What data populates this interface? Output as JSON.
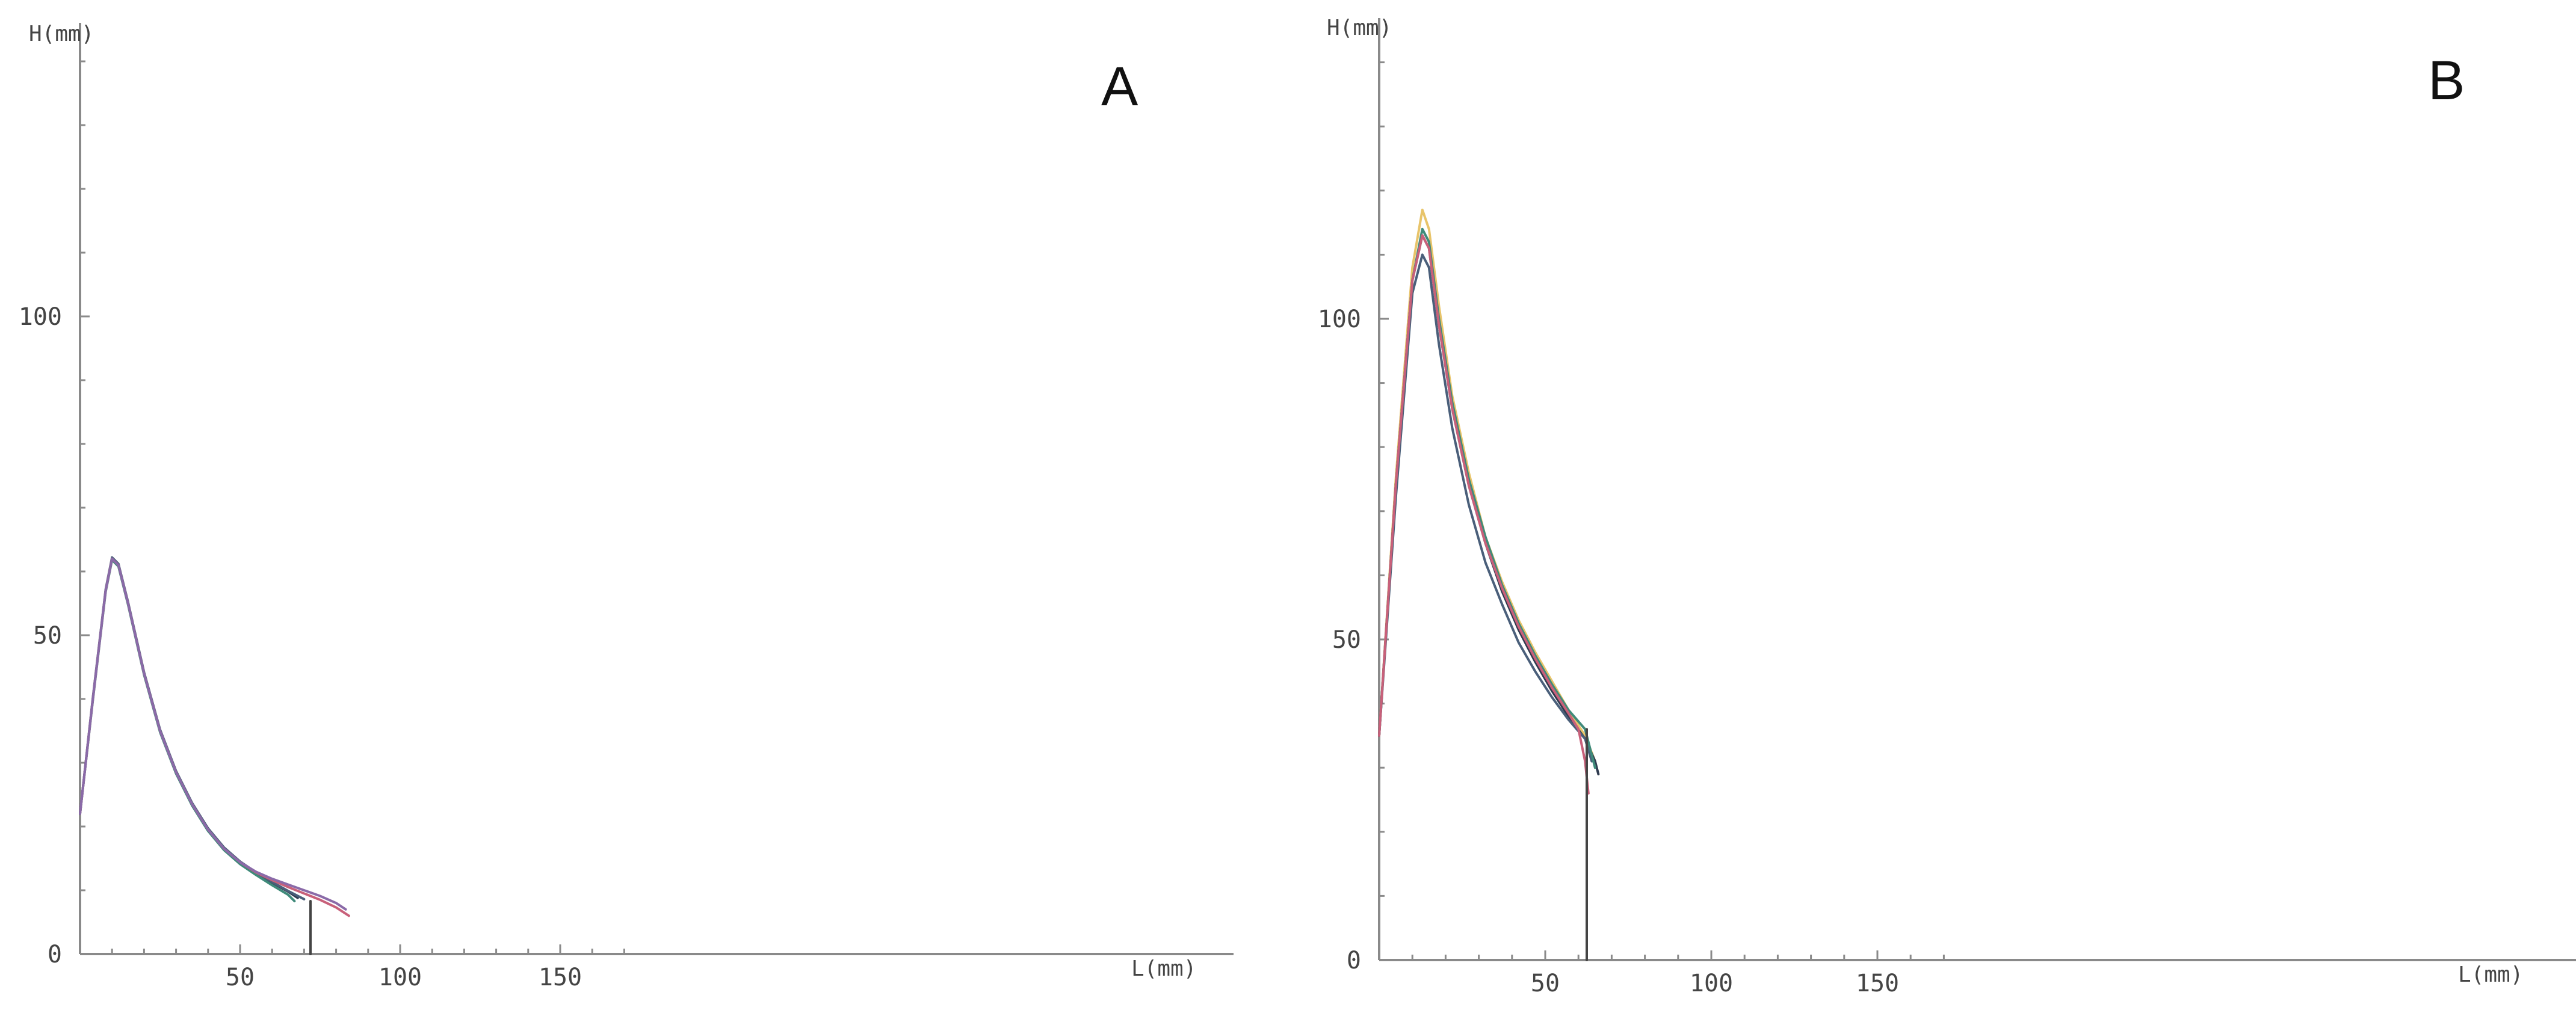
{
  "chart_data": [
    {
      "type": "line",
      "panel_label": "A",
      "xlabel": "L(mm)",
      "ylabel": "H(mm)",
      "xlim": [
        0,
        180
      ],
      "ylim": [
        0,
        140
      ],
      "x_ticks": [
        50,
        100,
        150
      ],
      "y_ticks": [
        0,
        50,
        100
      ],
      "grid": false,
      "series": [
        {
          "color": "#2f3b4f",
          "x": [
            0,
            4,
            8,
            10,
            12,
            15,
            20,
            25,
            30,
            35,
            40,
            45,
            50,
            55,
            60,
            65,
            68
          ],
          "y": [
            22,
            40,
            57,
            62,
            61,
            55,
            44,
            35,
            28.5,
            23.5,
            19.5,
            16.5,
            14.3,
            12.6,
            11.2,
            9.8,
            8.8
          ]
        },
        {
          "color": "#4a5f7a",
          "x": [
            0,
            4,
            8,
            10,
            12,
            15,
            20,
            25,
            30,
            35,
            40,
            45,
            50,
            55,
            60,
            65,
            70
          ],
          "y": [
            22,
            40.2,
            57.2,
            62.2,
            61.2,
            55.2,
            44.2,
            35.2,
            28.7,
            23.7,
            19.7,
            16.7,
            14.5,
            12.8,
            11.3,
            9.9,
            8.6
          ]
        },
        {
          "color": "#3f8a7a",
          "x": [
            0,
            4,
            8,
            10,
            12,
            15,
            20,
            25,
            30,
            35,
            40,
            45,
            50,
            55,
            60,
            65,
            67
          ],
          "y": [
            22,
            39.8,
            56.8,
            61.8,
            60.8,
            54.8,
            43.8,
            34.8,
            28.3,
            23.3,
            19.3,
            16.3,
            14.1,
            12.4,
            10.8,
            9.3,
            8.3
          ]
        },
        {
          "color": "#c8607a",
          "x": [
            0,
            4,
            8,
            10,
            12,
            15,
            20,
            25,
            30,
            35,
            40,
            45,
            50,
            55,
            60,
            65,
            70,
            75,
            80,
            84
          ],
          "y": [
            22,
            40,
            57,
            62,
            61,
            55,
            44,
            35,
            28.5,
            23.5,
            19.5,
            16.5,
            14.4,
            12.8,
            11.6,
            10.5,
            9.5,
            8.5,
            7.3,
            6
          ]
        },
        {
          "color": "#8a6aa8",
          "x": [
            0,
            4,
            8,
            10,
            12,
            15,
            20,
            25,
            30,
            35,
            40,
            45,
            50,
            55,
            60,
            65,
            70,
            75,
            80,
            83
          ],
          "y": [
            22,
            40,
            57,
            62,
            61,
            55,
            44,
            35,
            28.5,
            23.5,
            19.5,
            16.5,
            14.4,
            12.9,
            11.8,
            10.9,
            10,
            9.1,
            8,
            7
          ]
        },
        {
          "color": "#444444",
          "x": [
            72,
            72
          ],
          "y": [
            8.3,
            0
          ]
        }
      ]
    },
    {
      "type": "line",
      "panel_label": "B",
      "xlabel": "L(mm)",
      "ylabel": "H(mm)",
      "xlim": [
        0,
        180
      ],
      "ylim": [
        0,
        148
      ],
      "x_ticks": [
        50,
        100,
        150
      ],
      "y_ticks": [
        0,
        50,
        100
      ],
      "grid": false,
      "series": [
        {
          "color": "#e8c46a",
          "x": [
            0,
            5,
            10,
            13,
            15,
            18,
            22,
            27,
            32,
            37,
            42,
            47,
            52,
            57,
            62,
            65
          ],
          "y": [
            35,
            75,
            108,
            117,
            114,
            102,
            88,
            76,
            66,
            59,
            53,
            48,
            43.5,
            39,
            35,
            31
          ]
        },
        {
          "color": "#2f3b4f",
          "x": [
            0,
            5,
            10,
            13,
            15,
            18,
            22,
            27,
            32,
            37,
            42,
            47,
            52,
            57,
            62,
            65,
            66
          ],
          "y": [
            35,
            74,
            106,
            113,
            111,
            99,
            86,
            74,
            65,
            57.5,
            51.5,
            46.5,
            42,
            38,
            34.5,
            31,
            29
          ]
        },
        {
          "color": "#4a5f7a",
          "x": [
            0,
            5,
            10,
            13,
            15,
            18,
            22,
            27,
            32,
            37,
            42,
            47,
            52,
            57,
            62,
            64
          ],
          "y": [
            35,
            72,
            104,
            110,
            108,
            96,
            83,
            71,
            62,
            55.5,
            49.5,
            45,
            41,
            37.5,
            34.5,
            31
          ]
        },
        {
          "color": "#3f8a7a",
          "x": [
            0,
            5,
            10,
            13,
            15,
            18,
            22,
            27,
            32,
            37,
            42,
            47,
            52,
            57,
            62,
            64,
            65
          ],
          "y": [
            35,
            74,
            106,
            114,
            112,
            100,
            87,
            75,
            66,
            58.5,
            52.5,
            47.5,
            43,
            39,
            36,
            32,
            30
          ]
        },
        {
          "color": "#c8607a",
          "x": [
            0,
            5,
            10,
            13,
            15,
            18,
            22,
            27,
            32,
            37,
            42,
            47,
            52,
            57,
            60,
            62,
            63
          ],
          "y": [
            35,
            74,
            106,
            113,
            111,
            99,
            86,
            74,
            65,
            58,
            52,
            47,
            42.5,
            38.5,
            36,
            31,
            26
          ]
        },
        {
          "color": "#444444",
          "x": [
            62.5,
            62.5
          ],
          "y": [
            36,
            0
          ]
        }
      ]
    }
  ]
}
